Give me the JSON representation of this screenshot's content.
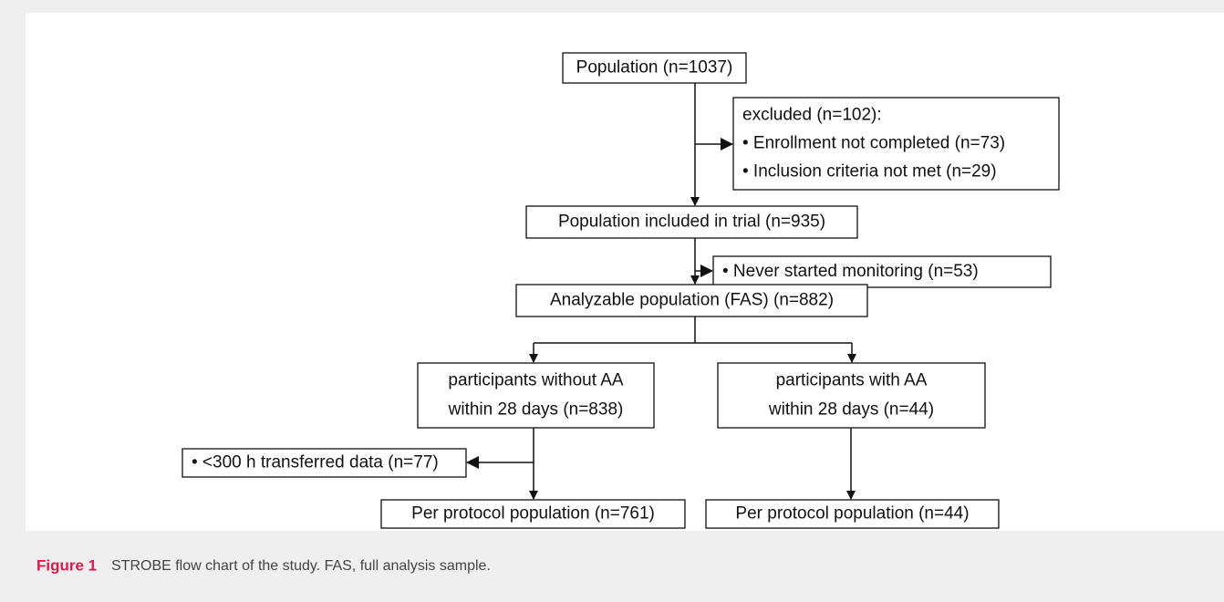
{
  "nodes": [
    {
      "lines": [
        "Population (n=1037)"
      ]
    },
    {
      "lines": [
        "excluded (n=102):",
        "• Enrollment not completed (n=73)",
        "• Inclusion criteria not met (n=29)"
      ]
    },
    {
      "lines": [
        "Population included in trial (n=935)"
      ]
    },
    {
      "lines": [
        "• Never started monitoring (n=53)"
      ]
    },
    {
      "lines": [
        "Analyzable population (FAS) (n=882)"
      ]
    },
    {
      "lines": [
        "participants without AA",
        "within 28 days (n=838)"
      ]
    },
    {
      "lines": [
        "participants with AA",
        "within 28 days (n=44)"
      ]
    },
    {
      "lines": [
        "• <300 h transferred data (n=77)"
      ]
    },
    {
      "lines": [
        "Per protocol population (n=761)"
      ]
    },
    {
      "lines": [
        "Per protocol population (n=44)"
      ]
    }
  ],
  "caption": {
    "label": "Figure 1",
    "text": "STROBE flow chart of the study. FAS, full analysis sample."
  }
}
